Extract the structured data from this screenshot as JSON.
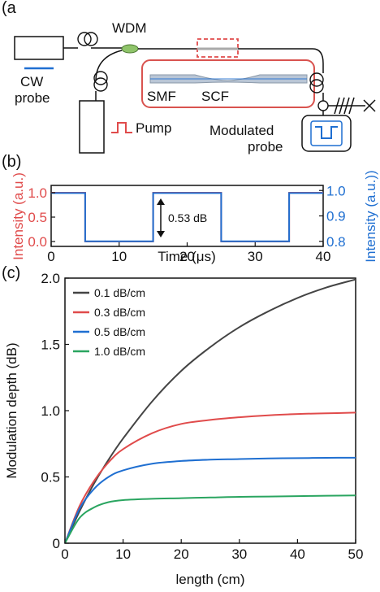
{
  "panels": {
    "a": "(a",
    "b": "(b)",
    "c": "(c)"
  },
  "schematic": {
    "wdm": "WDM",
    "cw": "CW",
    "probe": "probe",
    "smf": "SMF",
    "scf": "SCF",
    "pump": "Pump",
    "modulated": "Modulated",
    "modulated_probe": "probe",
    "colors": {
      "pump": "#e04b4b",
      "probe": "#1f6fd1",
      "wdm": "#8fc46a",
      "box": "#d9534f"
    }
  },
  "chart_data": [
    {
      "type": "line",
      "xlabel": "Time (μs)",
      "ylabel": "Intensity (a.u.)",
      "ylabel_right": "Intensity (a.u.))",
      "xlim": [
        0,
        40
      ],
      "ylim": [
        -0.1,
        1.15
      ],
      "ylim_right": [
        0.78,
        1.02
      ],
      "xticks": [
        "0",
        "10",
        "20",
        "30",
        "40"
      ],
      "yticks": [
        "0.0",
        "0.5",
        "1.0"
      ],
      "yticks_right": [
        "0.8",
        "0.9",
        "1.0"
      ],
      "annotation": "0.53 dB",
      "series": [
        {
          "axis": "left",
          "color": "#e04b4b",
          "x": [
            0,
            5,
            5,
            15,
            15,
            25,
            25,
            35,
            35,
            40
          ],
          "y": [
            1.0,
            1.0,
            0.0,
            0.0,
            1.0,
            1.0,
            0.0,
            0.0,
            1.0,
            1.0
          ]
        },
        {
          "axis": "right",
          "color": "#1f6fd1",
          "x": [
            0,
            5,
            5,
            15,
            15,
            25,
            25,
            35,
            35,
            40
          ],
          "y": [
            0.99,
            0.99,
            0.8,
            0.8,
            0.99,
            0.99,
            0.8,
            0.8,
            0.99,
            0.99
          ]
        }
      ],
      "grid": false
    },
    {
      "type": "line",
      "xlabel": "length (cm)",
      "ylabel": "Modulation depth (dB)",
      "xlim": [
        0,
        50
      ],
      "ylim": [
        0,
        2.0
      ],
      "xticks": [
        "0",
        "10",
        "20",
        "30",
        "40",
        "50"
      ],
      "yticks": [
        "0",
        "0.5",
        "1.0",
        "1.5",
        "2.0"
      ],
      "legend_position": "top-left",
      "grid": false,
      "x": [
        0,
        2.5,
        5,
        7.5,
        10,
        15,
        20,
        25,
        30,
        35,
        40,
        45,
        50
      ],
      "series": [
        {
          "name": "0.1 dB/cm",
          "color": "#444444",
          "values": [
            0,
            0.24,
            0.45,
            0.63,
            0.79,
            1.07,
            1.3,
            1.48,
            1.63,
            1.75,
            1.85,
            1.93,
            1.99
          ]
        },
        {
          "name": "0.3 dB/cm",
          "color": "#e04b4b",
          "values": [
            0,
            0.28,
            0.47,
            0.61,
            0.71,
            0.83,
            0.9,
            0.93,
            0.95,
            0.965,
            0.975,
            0.98,
            0.985
          ]
        },
        {
          "name": "0.5 dB/cm",
          "color": "#1f6fd1",
          "values": [
            0,
            0.26,
            0.41,
            0.5,
            0.55,
            0.6,
            0.62,
            0.63,
            0.635,
            0.64,
            0.642,
            0.644,
            0.645
          ]
        },
        {
          "name": "1.0 dB/cm",
          "color": "#2aa560",
          "values": [
            0,
            0.19,
            0.27,
            0.31,
            0.325,
            0.335,
            0.34,
            0.345,
            0.35,
            0.352,
            0.355,
            0.358,
            0.36
          ]
        }
      ]
    }
  ]
}
